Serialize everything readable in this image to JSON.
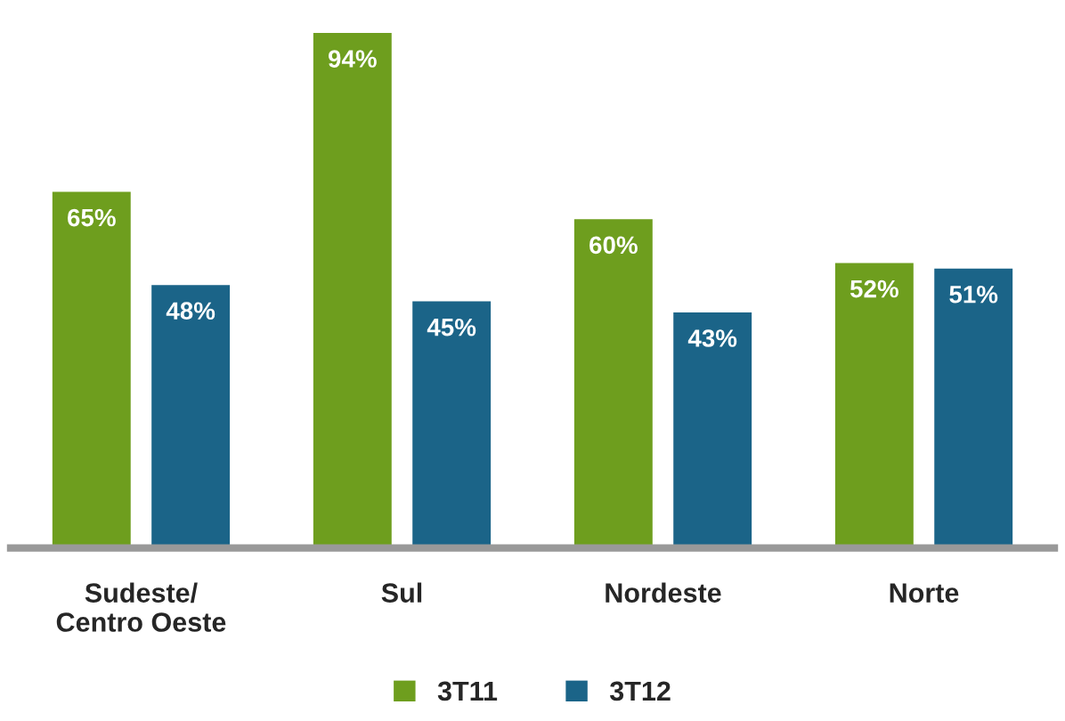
{
  "chart_data": {
    "type": "bar",
    "categories": [
      "Sudeste/\nCentro Oeste",
      "Sul",
      "Nordeste",
      "Norte"
    ],
    "series": [
      {
        "name": "3T11",
        "color": "#6e9e1e",
        "values": [
          65,
          94,
          60,
          52
        ],
        "value_labels": [
          "65%",
          "94%",
          "60%",
          "52%"
        ]
      },
      {
        "name": "3T12",
        "color": "#1b6488",
        "values": [
          48,
          45,
          43,
          51
        ],
        "value_labels": [
          "48%",
          "45%",
          "43%",
          "51%"
        ]
      }
    ],
    "legend": "bottom",
    "grid": false
  }
}
